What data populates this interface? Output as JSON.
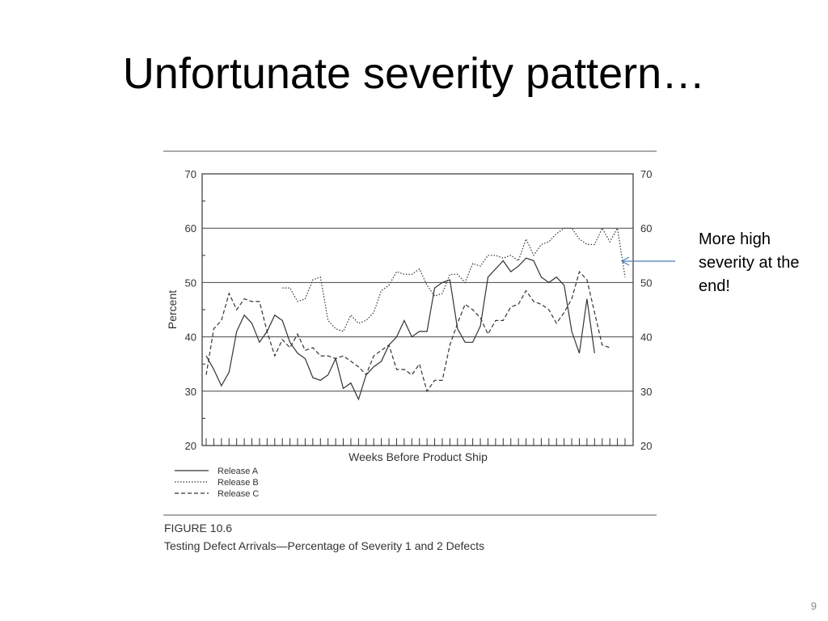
{
  "slide": {
    "title": "Unfortunate severity pattern…",
    "callout": "More high severity at the end!",
    "page_number": "9"
  },
  "colors": {
    "line": "#333333",
    "arrow": "#4a7ebb",
    "background": "#ffffff"
  },
  "chart_data": {
    "type": "line",
    "title": "FIGURE 10.6",
    "caption": "Testing Defect Arrivals—Percentage of Severity 1 and 2 Defects",
    "xlabel": "Weeks Before Product Ship",
    "ylabel": "Percent",
    "ylim": [
      20,
      70
    ],
    "yticks": [
      20,
      30,
      40,
      50,
      60,
      70
    ],
    "grid": true,
    "legend_position": "bottom-left",
    "series": [
      {
        "name": "Release A",
        "style": "solid",
        "values": [
          36.5,
          34,
          31,
          33.5,
          41,
          44,
          42.5,
          39,
          41,
          44,
          43,
          39,
          37,
          36,
          32.5,
          32,
          33,
          36,
          30.5,
          31.5,
          28.5,
          33,
          34.5,
          35.5,
          38.5,
          40,
          43,
          40,
          41,
          41,
          49,
          50,
          50.5,
          41.5,
          39,
          39,
          42,
          51,
          52.5,
          54,
          52,
          53,
          54.5,
          54,
          51,
          50,
          51,
          49.5,
          41,
          37,
          47,
          37
        ]
      },
      {
        "name": "Release B",
        "style": "dotted",
        "values": [
          null,
          null,
          null,
          null,
          null,
          null,
          null,
          null,
          null,
          null,
          49,
          49,
          46.5,
          47,
          50.5,
          51,
          43,
          41.5,
          41,
          44,
          42.5,
          43,
          44.5,
          48.5,
          49.5,
          52,
          51.5,
          51.5,
          52.5,
          49.5,
          47.5,
          48,
          51.5,
          51.5,
          50,
          53.5,
          53,
          55,
          55,
          54.5,
          55,
          54,
          58,
          55,
          57,
          57.5,
          59,
          60,
          60,
          58,
          57,
          57,
          60,
          57.5,
          60,
          51
        ]
      },
      {
        "name": "Release C",
        "style": "dashed",
        "values": [
          33,
          41.5,
          43,
          48,
          45,
          47,
          46.5,
          46.5,
          41,
          36.5,
          39.5,
          38,
          40.5,
          37.5,
          38,
          36.5,
          36.5,
          36,
          36.5,
          35.5,
          34.5,
          33,
          36.5,
          37.5,
          38.5,
          34,
          34,
          33,
          35,
          30,
          32,
          32,
          38.5,
          42.5,
          46,
          45,
          43.5,
          40.5,
          43,
          43,
          45.5,
          46,
          48.5,
          46.5,
          46,
          45,
          42.5,
          44.5,
          47,
          52,
          50.5,
          44.5,
          38.5,
          38
        ]
      }
    ]
  }
}
